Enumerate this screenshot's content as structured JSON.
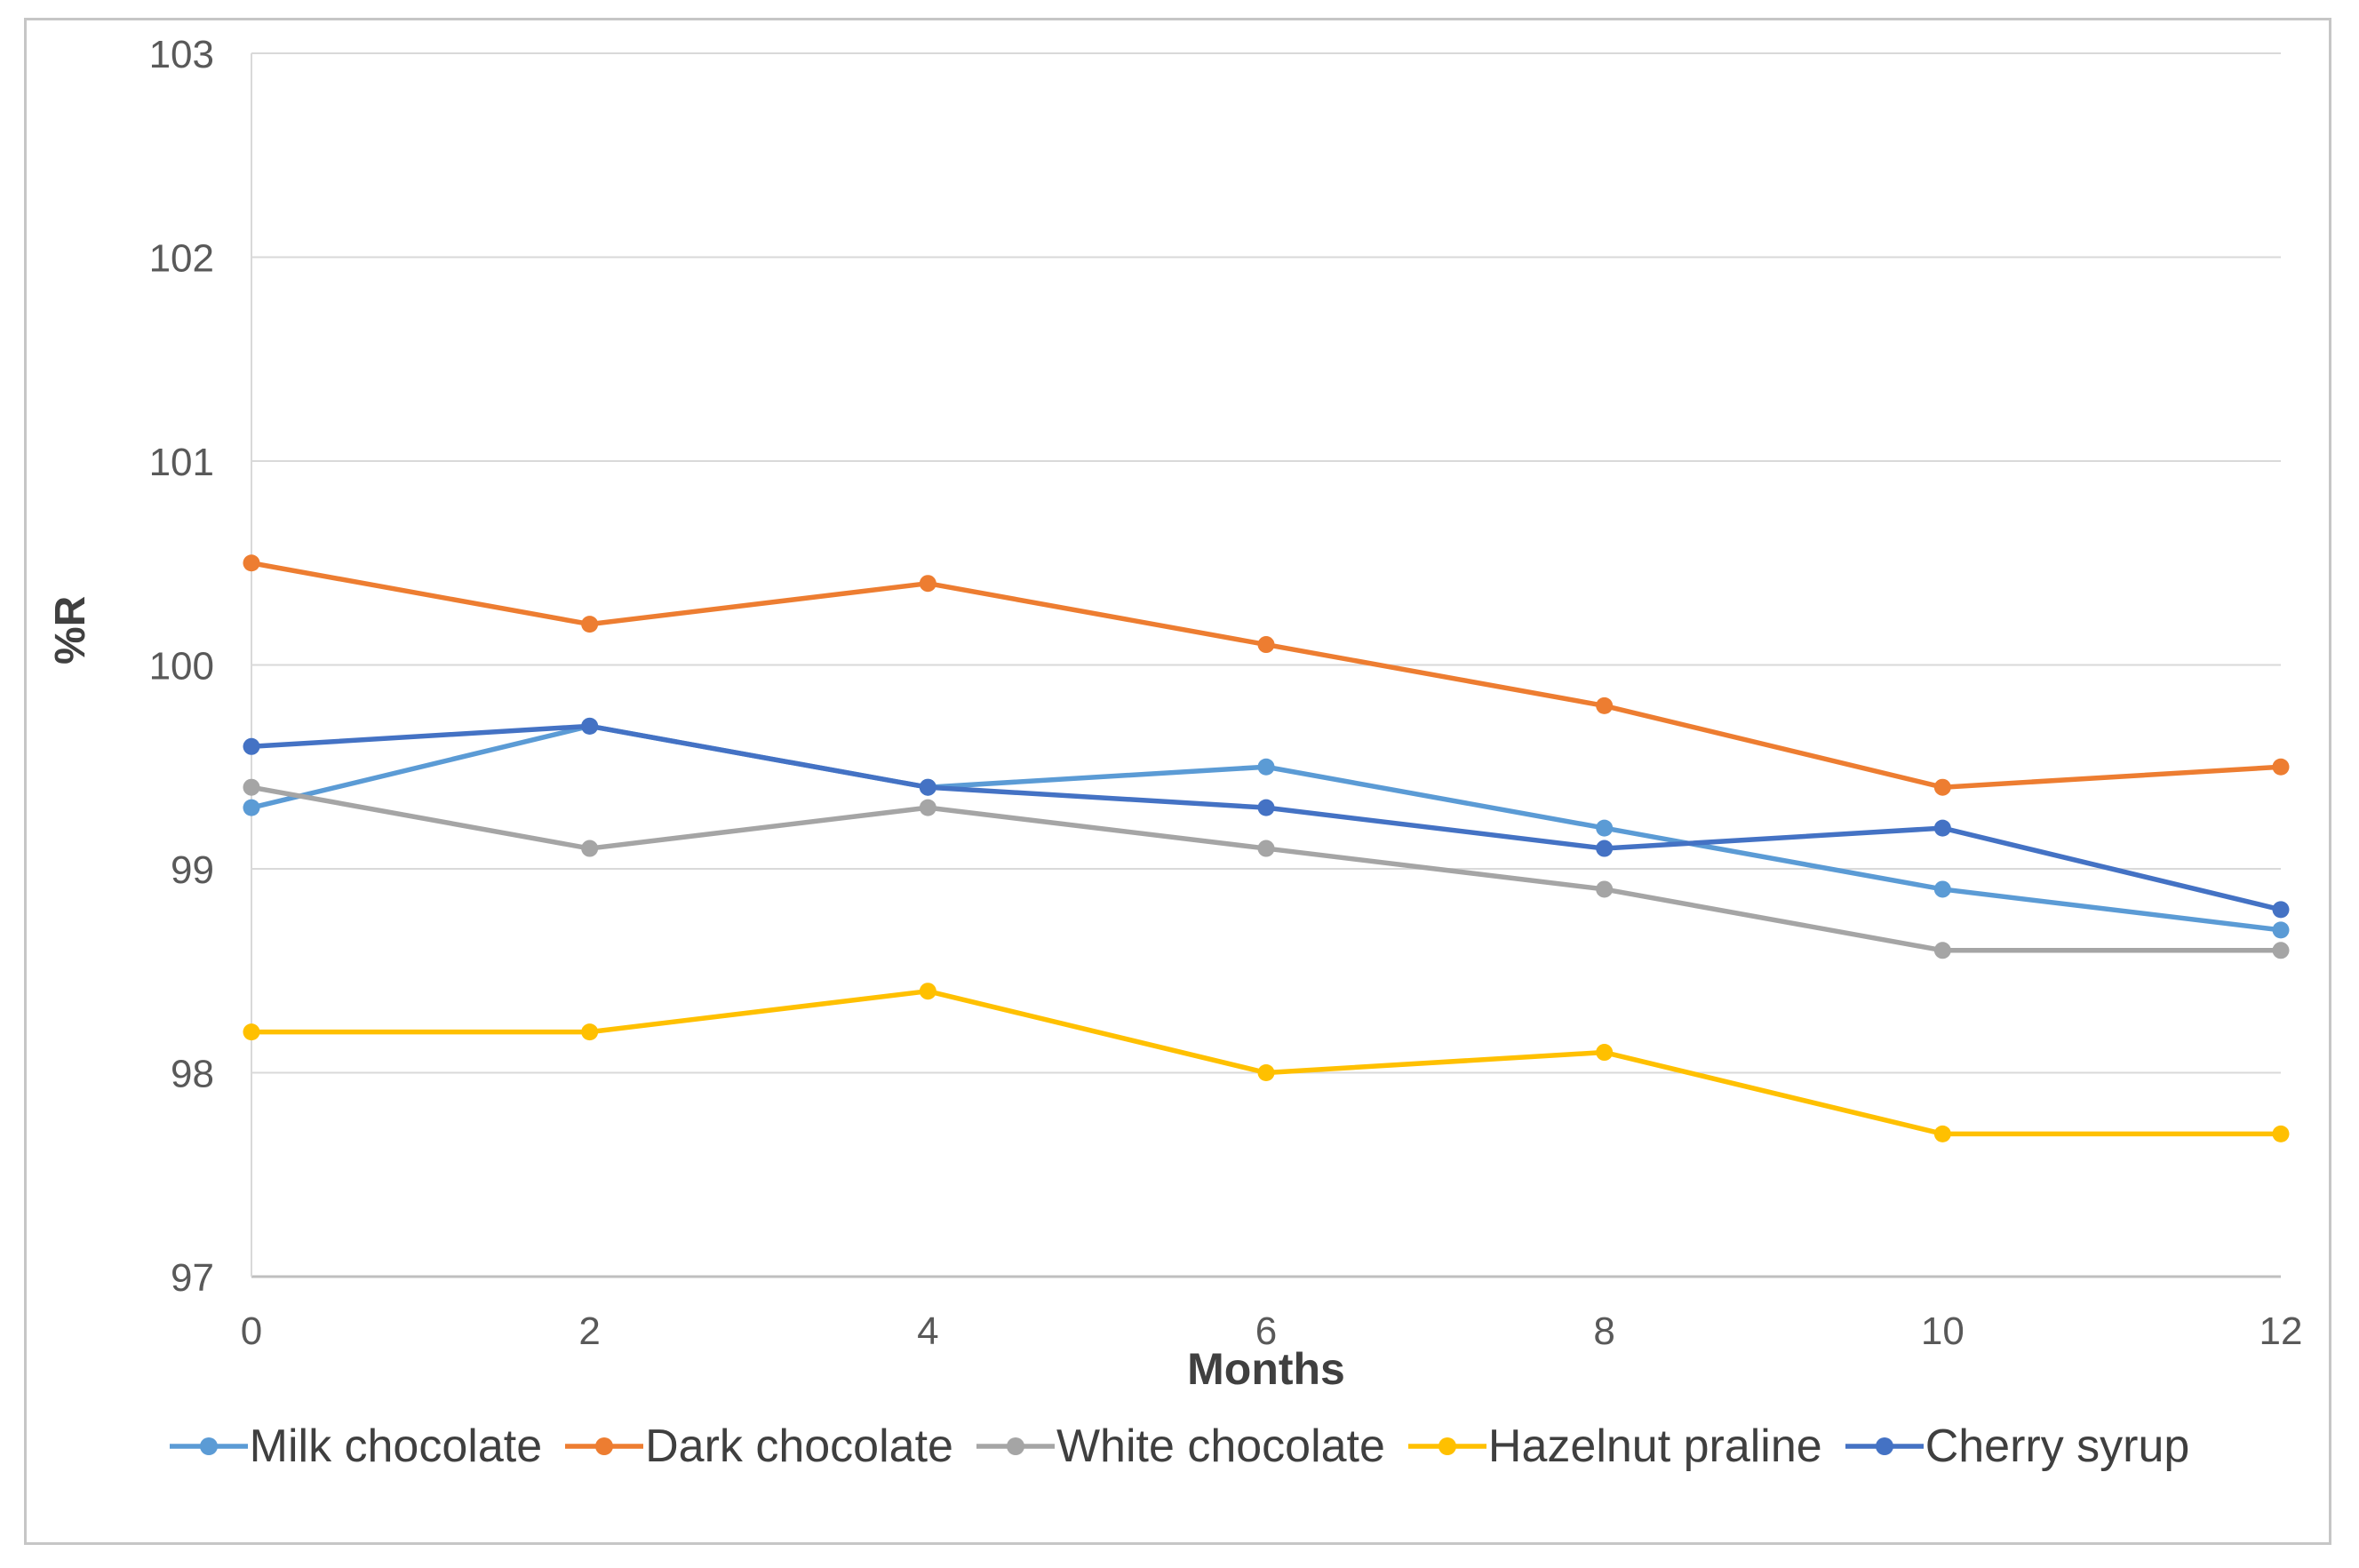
{
  "chart_data": {
    "type": "line",
    "x": [
      0,
      2,
      4,
      6,
      8,
      10,
      12
    ],
    "xticks": [
      "0",
      "2",
      "4",
      "6",
      "8",
      "10",
      "12"
    ],
    "yticks": [
      "97",
      "98",
      "99",
      "100",
      "101",
      "102",
      "103"
    ],
    "xlim": [
      0,
      12
    ],
    "ylim": [
      97,
      103
    ],
    "xlabel": "Months",
    "ylabel": "%R",
    "grid": true,
    "legend_position": "bottom",
    "series": [
      {
        "name": "Milk chocolate",
        "color": "#5B9BD5",
        "values": [
          99.3,
          99.7,
          99.4,
          99.5,
          99.2,
          98.9,
          98.7
        ]
      },
      {
        "name": "Dark chocolate",
        "color": "#ED7D31",
        "values": [
          100.5,
          100.2,
          100.4,
          100.1,
          99.8,
          99.4,
          99.5
        ]
      },
      {
        "name": "White chocolate",
        "color": "#A5A5A5",
        "values": [
          99.4,
          99.1,
          99.3,
          99.1,
          98.9,
          98.6,
          98.6
        ]
      },
      {
        "name": "Hazelnut praline",
        "color": "#FFC000",
        "values": [
          98.2,
          98.2,
          98.4,
          98.0,
          98.1,
          97.7,
          97.7
        ]
      },
      {
        "name": "Cherry syrup",
        "color": "#4472C4",
        "values": [
          99.6,
          99.7,
          99.4,
          99.3,
          99.1,
          99.2,
          98.8
        ]
      }
    ]
  },
  "styles": {
    "background": "#ffffff",
    "frame_border_color": "#c6c6c6",
    "grid_color": "#d9d9d9",
    "axis_line_color": "#bfbfbf",
    "tick_label_color": "#595959",
    "axis_title_color": "#404040",
    "legend_text_color": "#3f3f3f"
  }
}
